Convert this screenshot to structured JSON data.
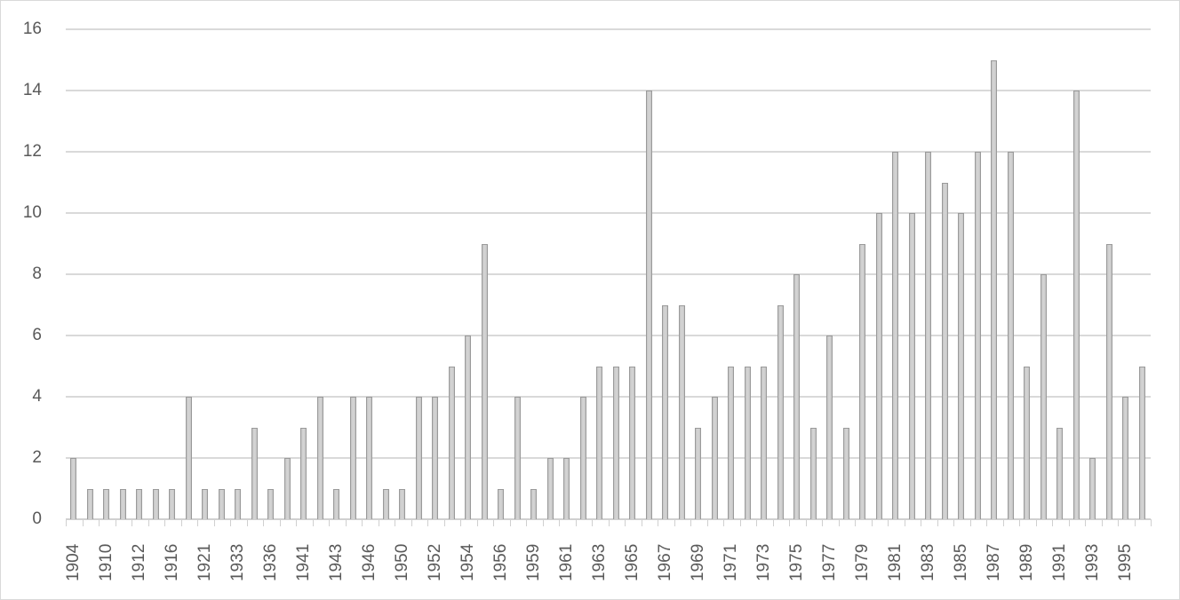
{
  "chart_data": {
    "type": "bar",
    "title": "",
    "xlabel": "",
    "ylabel": "",
    "ylim": [
      0,
      16
    ],
    "yticks": [
      0,
      2,
      4,
      6,
      8,
      10,
      12,
      14,
      16
    ],
    "grid": true,
    "legend": "none",
    "x_tick_labels_every_other_bar": true,
    "categories": [
      "1904",
      "",
      "1910",
      "",
      "1912",
      "",
      "1916",
      "",
      "1921",
      "",
      "1933",
      "",
      "1936",
      "",
      "1941",
      "",
      "1943",
      "",
      "1946",
      "",
      "1950",
      "",
      "1952",
      "",
      "1954",
      "",
      "1956",
      "",
      "1959",
      "",
      "1961",
      "",
      "1963",
      "",
      "1965",
      "",
      "1967",
      "",
      "1969",
      "",
      "1971",
      "",
      "1973",
      "",
      "1975",
      "",
      "1977",
      "",
      "1979",
      "",
      "1981",
      "",
      "1983",
      "",
      "1985",
      "",
      "1987",
      "",
      "1989",
      "",
      "1991",
      "",
      "1993",
      "",
      "1995",
      ""
    ],
    "values": [
      2,
      1,
      1,
      1,
      1,
      1,
      1,
      4,
      1,
      1,
      1,
      3,
      1,
      2,
      3,
      4,
      1,
      4,
      4,
      1,
      1,
      4,
      4,
      5,
      6,
      9,
      1,
      4,
      1,
      2,
      2,
      4,
      5,
      5,
      5,
      14,
      7,
      7,
      3,
      4,
      5,
      5,
      5,
      7,
      8,
      3,
      6,
      3,
      9,
      10,
      12,
      10,
      12,
      11,
      10,
      12,
      15,
      12,
      5,
      8,
      3,
      14,
      2,
      9,
      4,
      5
    ],
    "colors": {
      "bar_fill": "#d0d0d0",
      "bar_border": "#9a9a9a",
      "grid": "#d9d9d9",
      "text": "#595959"
    }
  }
}
